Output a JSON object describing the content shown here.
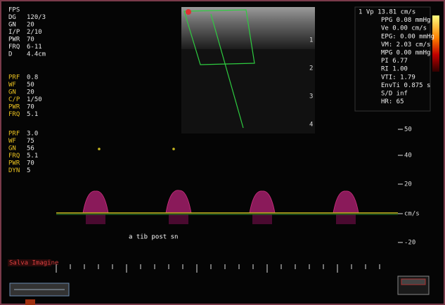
{
  "left_params": {
    "groups": [
      [
        [
          "FPS",
          ""
        ],
        [
          "DG",
          "120/3"
        ],
        [
          "GN",
          "20"
        ],
        [
          "I/P",
          "2/10"
        ],
        [
          "PWR",
          "70"
        ],
        [
          "FRQ",
          "6-11"
        ],
        [
          "D",
          "4.4cm"
        ]
      ],
      [
        [
          "PRF",
          "0.8"
        ],
        [
          "WF",
          "50"
        ],
        [
          "GN",
          "20"
        ],
        [
          "C/P",
          "1/50"
        ],
        [
          "PWR",
          "70"
        ],
        [
          "FRQ",
          "5.1"
        ]
      ],
      [
        [
          "PRF",
          "3.0"
        ],
        [
          "WF",
          "75"
        ],
        [
          "GN",
          "56"
        ],
        [
          "FRQ",
          "5.1"
        ],
        [
          "PWR",
          "70"
        ],
        [
          "DYN",
          "5"
        ]
      ]
    ]
  },
  "measurements": [
    "1 Vp 13.81 cm/s",
    "PPG 0.08 mmHg",
    "Ve 0.00 cm/s",
    "EPG: 0.00 mmHg",
    "VM: 2.03 cm/s",
    "MPG 0.00 mmHg",
    "PI 6.77",
    "RI 1.00",
    "VTI: 1.79",
    "EnvTi 0.875 s",
    "S/D inf",
    "HR: 65"
  ],
  "depth_marks": [
    "1",
    "2",
    "3",
    "4"
  ],
  "velocity_scale": [
    "50",
    "40",
    "20",
    "cm/s",
    "-20"
  ],
  "annotation": "a tib post sn",
  "watermark": "Salva Imagine"
}
